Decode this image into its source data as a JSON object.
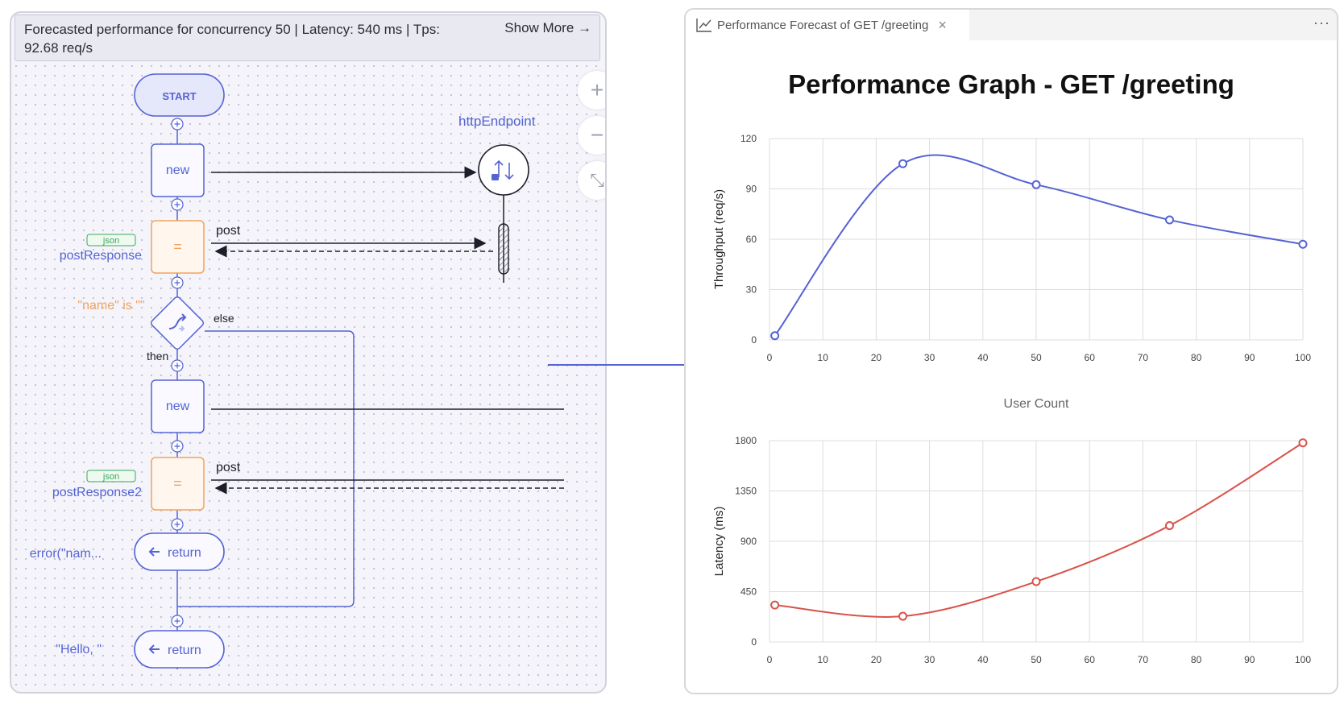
{
  "flow": {
    "banner": {
      "summary": "Forecasted performance for concurrency 50 | Latency: 540 ms | Tps: 92.68 req/s",
      "show_more": "Show More →"
    },
    "start_label": "START",
    "endpoint_label": "httpEndpoint",
    "new_label_1": "new",
    "new_label_2": "new",
    "assign_symbol_1": "=",
    "assign_symbol_2": "=",
    "post_label_1": "post",
    "post_label_2": "post",
    "json_badge_1": "json",
    "json_badge_2": "json",
    "var_1": "postResponse",
    "var_2": "postResponse2",
    "condition": "\"name\" is \"\"",
    "else_label": "else",
    "then_label": "then",
    "return_label_1": "return",
    "return_label_2": "return",
    "return_expr_1": "error(\"nam...",
    "return_expr_2": "\"Hello, \"",
    "zoom_in": "+",
    "zoom_out": "−",
    "fit": "⤡"
  },
  "graph_panel": {
    "tab_title": "Performance Forecast of GET /greeting",
    "tab_close": "×",
    "more_actions": "···",
    "title": "Performance Graph - GET /greeting"
  },
  "chart_data": [
    {
      "type": "line",
      "title": "Performance Graph - GET /greeting",
      "xlabel": "User Count",
      "ylabel": "Throughput (req/s)",
      "x": [
        1,
        25,
        50,
        75,
        100
      ],
      "series": [
        {
          "values": [
            2.5,
            105,
            92.5,
            71.5,
            57
          ],
          "color": "#5563d4"
        }
      ],
      "xlim": [
        0,
        100
      ],
      "ylim": [
        0,
        120
      ],
      "xticks": [
        0,
        10,
        20,
        30,
        40,
        50,
        60,
        70,
        80,
        90,
        100
      ],
      "yticks": [
        0,
        30,
        60,
        90,
        120
      ],
      "grid": true
    },
    {
      "type": "line",
      "xlabel": "",
      "ylabel": "Latency (ms)",
      "x": [
        1,
        25,
        50,
        75,
        100
      ],
      "series": [
        {
          "values": [
            330,
            230,
            540,
            1040,
            1780
          ],
          "color": "#d9534a"
        }
      ],
      "xlim": [
        0,
        100
      ],
      "ylim": [
        0,
        1800
      ],
      "xticks": [
        0,
        10,
        20,
        30,
        40,
        50,
        60,
        70,
        80,
        90,
        100
      ],
      "yticks": [
        0,
        450,
        900,
        1350,
        1800
      ],
      "grid": true
    }
  ],
  "colors": {
    "accent": "#5563d4",
    "orange": "#f2a35e",
    "green": "#3aa65a",
    "latency_line": "#d9534a"
  }
}
